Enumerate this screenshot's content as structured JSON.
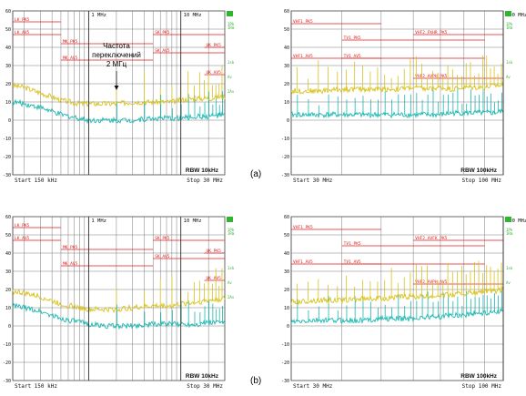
{
  "colors": {
    "background": "#ffffff",
    "grid": "#7a7a7a",
    "limit": "#e01b1b",
    "peak_trace": "#d8c21a",
    "avg_trace": "#19b8b0",
    "indicator": "#2fb52f",
    "text": "#111111"
  },
  "figure_labels": [
    "(a)",
    "(b)"
  ],
  "callout": {
    "line1": "Частота",
    "line2": "переключений",
    "line3": "2 МГц"
  },
  "chart_data": [
    {
      "type": "line",
      "panel": "a-left",
      "scale": "log-x",
      "xlim_mhz": [
        0.15,
        30
      ],
      "ylim_dbuv": [
        -30,
        60
      ],
      "y_ticks": [
        "60",
        "50",
        "40",
        "30",
        "20",
        "10",
        "0",
        "-10",
        "-20",
        "-30"
      ],
      "top_marks": [
        "1 MHz",
        "10 MHz"
      ],
      "start_label": "Start 150 kHz",
      "stop_label": "Stop 30 MHz",
      "rbw_label": "RBW 10kHz",
      "right_tags": [
        "1Pk",
        "1Rm",
        "1sk",
        "Av",
        "2Av"
      ],
      "limit_lines": [
        {
          "name": "LK_PK5",
          "label_pos": "left"
        },
        {
          "name": "LK_AV5",
          "label_pos": "left"
        },
        {
          "name": "MK_PK5",
          "label_pos": "mid"
        },
        {
          "name": "MK_AV5",
          "label_pos": "mid"
        },
        {
          "name": "SK_PK5",
          "label_pos": "right"
        },
        {
          "name": "SK_AV5",
          "label_pos": "right"
        },
        {
          "name": "UK_PK5",
          "label_pos": "far-right"
        },
        {
          "name": "UK_AV5",
          "label_pos": "far-right"
        }
      ],
      "series": [
        {
          "name": "Peak",
          "x_mhz": [
            0.15,
            0.2,
            0.3,
            0.5,
            0.8,
            1,
            1.5,
            2,
            3,
            5,
            8,
            10,
            15,
            20,
            30
          ],
          "y": [
            19,
            18,
            15,
            11,
            9,
            9,
            9,
            9,
            10,
            10,
            10,
            11,
            12,
            12,
            13
          ]
        },
        {
          "name": "Average",
          "x_mhz": [
            0.15,
            0.2,
            0.3,
            0.5,
            0.8,
            1,
            1.5,
            2,
            3,
            5,
            8,
            10,
            15,
            20,
            30
          ],
          "y": [
            10,
            9,
            7,
            3,
            1,
            0,
            0,
            0,
            0,
            1,
            1,
            1,
            2,
            2,
            3
          ]
        }
      ],
      "spikes_mhz": [
        2,
        4,
        6,
        8,
        10,
        12,
        14,
        16,
        18,
        20,
        22,
        24,
        26,
        28
      ]
    },
    {
      "type": "line",
      "panel": "a-right",
      "scale": "log-x",
      "xlim_mhz": [
        30,
        100
      ],
      "ylim_dbuv": [
        -30,
        60
      ],
      "y_ticks": [
        "60",
        "50",
        "40",
        "30",
        "20",
        "10",
        "0",
        "-10",
        "-20",
        "-30"
      ],
      "top_marks": [
        "100 MHz"
      ],
      "start_label": "Start 30 MHz",
      "stop_label": "Stop 100 MHz",
      "rbw_label": "RBW 100kHz",
      "right_tags": [
        "1Pk",
        "1Rm",
        "1sk",
        "Av"
      ],
      "limit_lines": [
        {
          "name": "VHF1_PK5",
          "label_pos": "left"
        },
        {
          "name": "TV1_PK5",
          "label_pos": "mid"
        },
        {
          "name": "VHF1_AV5",
          "label_pos": "left"
        },
        {
          "name": "TV1_AV5",
          "label_pos": "mid"
        },
        {
          "name": "VHF2_FKHR_PK5",
          "label_pos": "right"
        },
        {
          "name": "VHF2_AVPH_PK5",
          "label_pos": "right"
        }
      ],
      "series": [
        {
          "name": "Peak",
          "x_mhz": [
            30,
            35,
            40,
            45,
            50,
            55,
            60,
            65,
            70,
            75,
            80,
            85,
            90,
            95,
            100
          ],
          "y": [
            16,
            16,
            17,
            17,
            17,
            17,
            18,
            17,
            18,
            17,
            18,
            18,
            18,
            19,
            19
          ]
        },
        {
          "name": "Average",
          "x_mhz": [
            30,
            35,
            40,
            45,
            50,
            55,
            60,
            65,
            70,
            75,
            80,
            85,
            90,
            95,
            100
          ],
          "y": [
            3,
            3,
            3,
            3,
            3,
            3,
            3,
            3,
            3,
            4,
            4,
            4,
            4,
            4,
            5
          ]
        }
      ],
      "spikes_mhz": [
        31,
        33,
        35,
        37,
        39,
        41,
        43,
        45,
        47,
        49,
        51,
        53,
        55,
        57,
        59,
        61,
        63,
        65,
        67,
        69,
        71,
        73,
        75,
        77,
        79,
        81,
        83,
        85,
        87,
        89,
        91,
        93,
        95,
        97,
        99
      ]
    },
    {
      "type": "line",
      "panel": "b-left",
      "scale": "log-x",
      "xlim_mhz": [
        0.15,
        30
      ],
      "ylim_dbuv": [
        -30,
        60
      ],
      "y_ticks": [
        "60",
        "50",
        "40",
        "30",
        "20",
        "10",
        "0",
        "-10",
        "-20",
        "-30"
      ],
      "top_marks": [
        "1 MHz",
        "10 MHz"
      ],
      "start_label": "Start 150 kHz",
      "stop_label": "Stop 30 MHz",
      "rbw_label": "RBW 10kHz",
      "right_tags": [
        "1Pk",
        "1Rm",
        "1sk",
        "Av",
        "2Av"
      ],
      "limit_lines": [
        {
          "name": "LK_PK5",
          "label_pos": "left"
        },
        {
          "name": "LK_AV5",
          "label_pos": "left"
        },
        {
          "name": "MK_PK5",
          "label_pos": "mid"
        },
        {
          "name": "MK_AV5",
          "label_pos": "mid"
        },
        {
          "name": "SK_PK5",
          "label_pos": "right"
        },
        {
          "name": "SK_AV5",
          "label_pos": "right"
        },
        {
          "name": "UK_PK5",
          "label_pos": "far-right"
        },
        {
          "name": "UK_AV5",
          "label_pos": "far-right"
        }
      ],
      "series": [
        {
          "name": "Peak",
          "x_mhz": [
            0.15,
            0.2,
            0.3,
            0.5,
            0.8,
            1,
            1.5,
            2,
            3,
            5,
            8,
            10,
            15,
            20,
            30
          ],
          "y": [
            19,
            18,
            16,
            12,
            10,
            9,
            9,
            9,
            10,
            11,
            11,
            12,
            13,
            14,
            15
          ]
        },
        {
          "name": "Average",
          "x_mhz": [
            0.15,
            0.2,
            0.3,
            0.5,
            0.8,
            1,
            1.5,
            2,
            3,
            5,
            8,
            10,
            15,
            20,
            30
          ],
          "y": [
            11,
            10,
            8,
            4,
            2,
            1,
            0,
            0,
            0,
            1,
            1,
            1,
            1,
            2,
            2
          ]
        }
      ],
      "spikes_mhz": [
        2,
        4,
        6,
        8,
        10,
        12,
        14,
        16,
        18,
        20,
        22,
        24,
        26,
        28
      ]
    },
    {
      "type": "line",
      "panel": "b-right",
      "scale": "log-x",
      "xlim_mhz": [
        30,
        100
      ],
      "ylim_dbuv": [
        -30,
        60
      ],
      "y_ticks": [
        "60",
        "50",
        "40",
        "30",
        "20",
        "10",
        "0",
        "-10",
        "-20",
        "-30"
      ],
      "top_marks": [
        "100 MHz"
      ],
      "start_label": "Start 30 MHz",
      "stop_label": "Stop 100 MHz",
      "rbw_label": "RBW 100kHz",
      "right_tags": [
        "1Pk",
        "1Rm",
        "1sk",
        "Av"
      ],
      "limit_lines": [
        {
          "name": "VHF1_PK5",
          "label_pos": "left"
        },
        {
          "name": "TV1_PK5",
          "label_pos": "mid"
        },
        {
          "name": "VHF1_AV5",
          "label_pos": "left"
        },
        {
          "name": "TV1_AV5",
          "label_pos": "mid"
        },
        {
          "name": "VHF2_AVFK_PK5",
          "label_pos": "right"
        },
        {
          "name": "VHF2_AVPH_AV5",
          "label_pos": "right"
        }
      ],
      "series": [
        {
          "name": "Peak",
          "x_mhz": [
            30,
            35,
            40,
            45,
            50,
            55,
            60,
            65,
            70,
            75,
            80,
            85,
            90,
            95,
            100
          ],
          "y": [
            13,
            14,
            14,
            15,
            15,
            16,
            16,
            16,
            17,
            17,
            18,
            18,
            19,
            19,
            20
          ]
        },
        {
          "name": "Average",
          "x_mhz": [
            30,
            35,
            40,
            45,
            50,
            55,
            60,
            65,
            70,
            75,
            80,
            85,
            90,
            95,
            100
          ],
          "y": [
            2,
            3,
            3,
            3,
            4,
            4,
            4,
            5,
            5,
            6,
            6,
            7,
            7,
            8,
            8
          ]
        }
      ],
      "spikes_mhz": [
        31,
        33,
        35,
        37,
        39,
        41,
        43,
        45,
        47,
        49,
        51,
        53,
        55,
        57,
        59,
        61,
        63,
        65,
        67,
        69,
        71,
        73,
        75,
        77,
        79,
        81,
        83,
        85,
        87,
        89,
        91,
        93,
        95,
        97,
        99
      ]
    }
  ]
}
